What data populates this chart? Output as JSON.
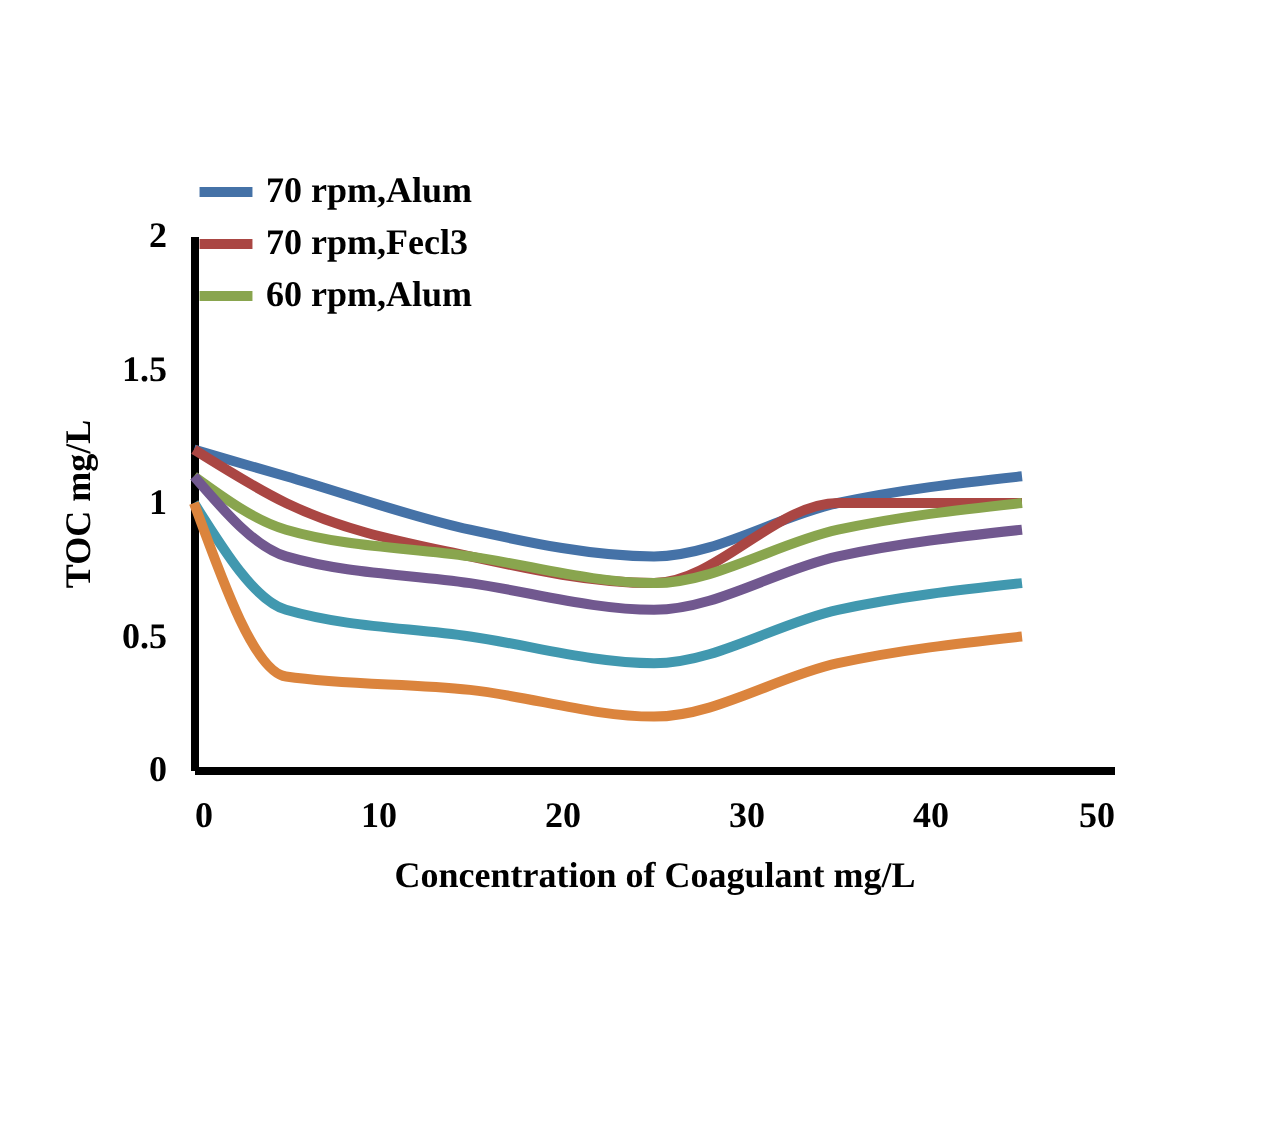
{
  "chart_data": {
    "type": "line",
    "xlabel": "Concentration of Coagulant mg/L",
    "ylabel": "TOC mg/L",
    "x": [
      0,
      5,
      15,
      25,
      35,
      45
    ],
    "series": [
      {
        "name": "70 rpm,Alum",
        "color": "#4572a7",
        "values": [
          1.2,
          1.1,
          0.9,
          0.8,
          1.0,
          1.1
        ]
      },
      {
        "name": "70 rpm,Fecl3",
        "color": "#aa4643",
        "values": [
          1.2,
          1.0,
          0.8,
          0.7,
          1.0,
          1.0
        ]
      },
      {
        "name": "60 rpm,Alum",
        "color": "#89a54e",
        "values": [
          1.1,
          0.9,
          0.8,
          0.7,
          0.9,
          1.0
        ]
      },
      {
        "color": "#71588f",
        "values": [
          1.1,
          0.8,
          0.7,
          0.6,
          0.8,
          0.9
        ]
      },
      {
        "color": "#4198af",
        "values": [
          1.0,
          0.6,
          0.5,
          0.4,
          0.6,
          0.7
        ]
      },
      {
        "color": "#db843d",
        "values": [
          1.0,
          0.35,
          0.3,
          0.2,
          0.4,
          0.5
        ]
      }
    ],
    "xlim": [
      0,
      50
    ],
    "xticks": [
      0,
      10,
      20,
      30,
      40,
      50
    ],
    "ylim": [
      0,
      2
    ],
    "yticks": [
      0,
      0.5,
      1,
      1.5,
      2
    ],
    "grid": false,
    "legend": "top",
    "marker": "none",
    "line_style": "solid"
  }
}
